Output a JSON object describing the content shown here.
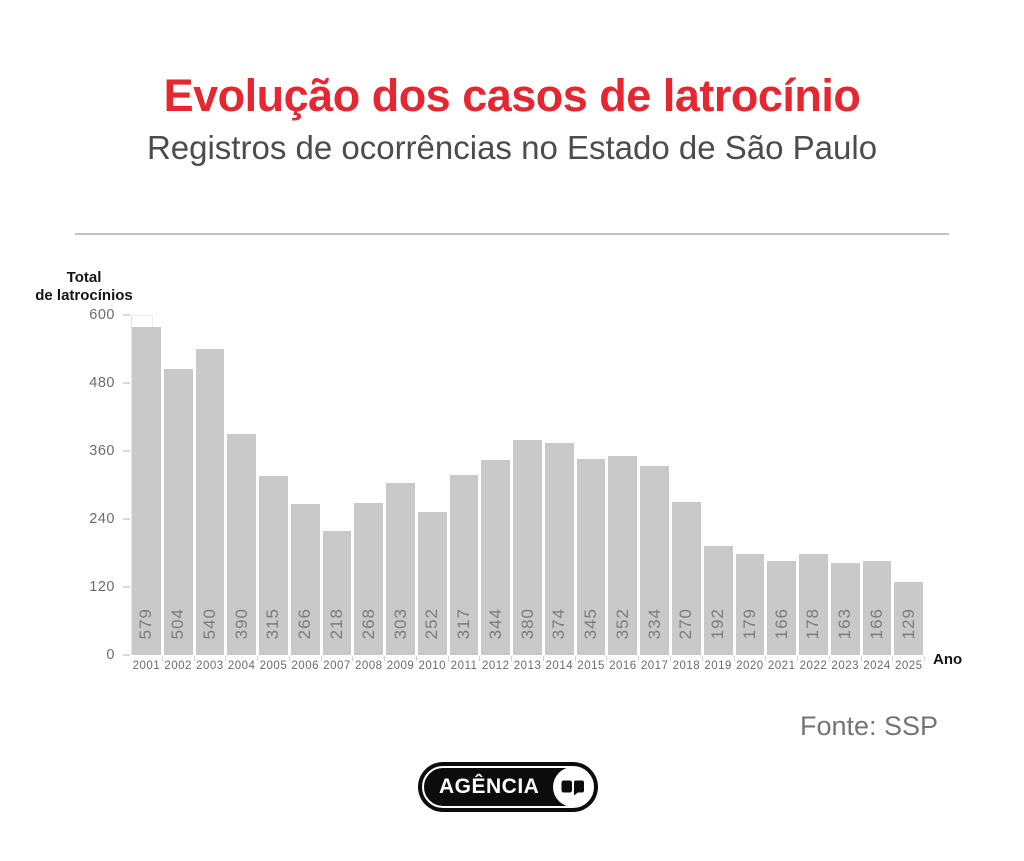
{
  "header": {
    "title": "Evolução dos casos de latrocínio",
    "subtitle": "Registros de ocorrências no Estado de São Paulo"
  },
  "axis": {
    "y_title_line1": "Total",
    "y_title_line2": "de latrocínios",
    "x_title": "Ano"
  },
  "chart_data": {
    "type": "bar",
    "title": "Evolução dos casos de latrocínio",
    "subtitle": "Registros de ocorrências no Estado de São Paulo",
    "categories": [
      "2001",
      "2002",
      "2003",
      "2004",
      "2005",
      "2006",
      "2007",
      "2008",
      "2009",
      "2010",
      "2011",
      "2012",
      "2013",
      "2014",
      "2015",
      "2016",
      "2017",
      "2018",
      "2019",
      "2020",
      "2021",
      "2022",
      "2023",
      "2024",
      "2025"
    ],
    "values": [
      579,
      504,
      540,
      390,
      315,
      266,
      218,
      268,
      303,
      252,
      317,
      344,
      380,
      374,
      345,
      352,
      334,
      270,
      192,
      179,
      166,
      178,
      163,
      166,
      129
    ],
    "xlabel": "Ano",
    "ylabel": "Total de latrocínios",
    "ylim": [
      0,
      600
    ],
    "yticks": [
      0,
      120,
      240,
      360,
      480,
      600
    ],
    "grid": false,
    "legend": "none",
    "bar_color": "#c9c9c9",
    "value_label_color": "#7c7c7c"
  },
  "footer": {
    "source": "Fonte: SSP"
  },
  "logo": {
    "text": "AGÊNCIA",
    "icon": "sp-speech-bubbles-icon"
  },
  "colors": {
    "accent_red": "#e62630",
    "subtitle_gray": "#4c4c4c",
    "bar_gray": "#c9c9c9",
    "axis_gray": "#6b6b6b",
    "source_gray": "#757575",
    "logo_black": "#0c0c0c"
  }
}
